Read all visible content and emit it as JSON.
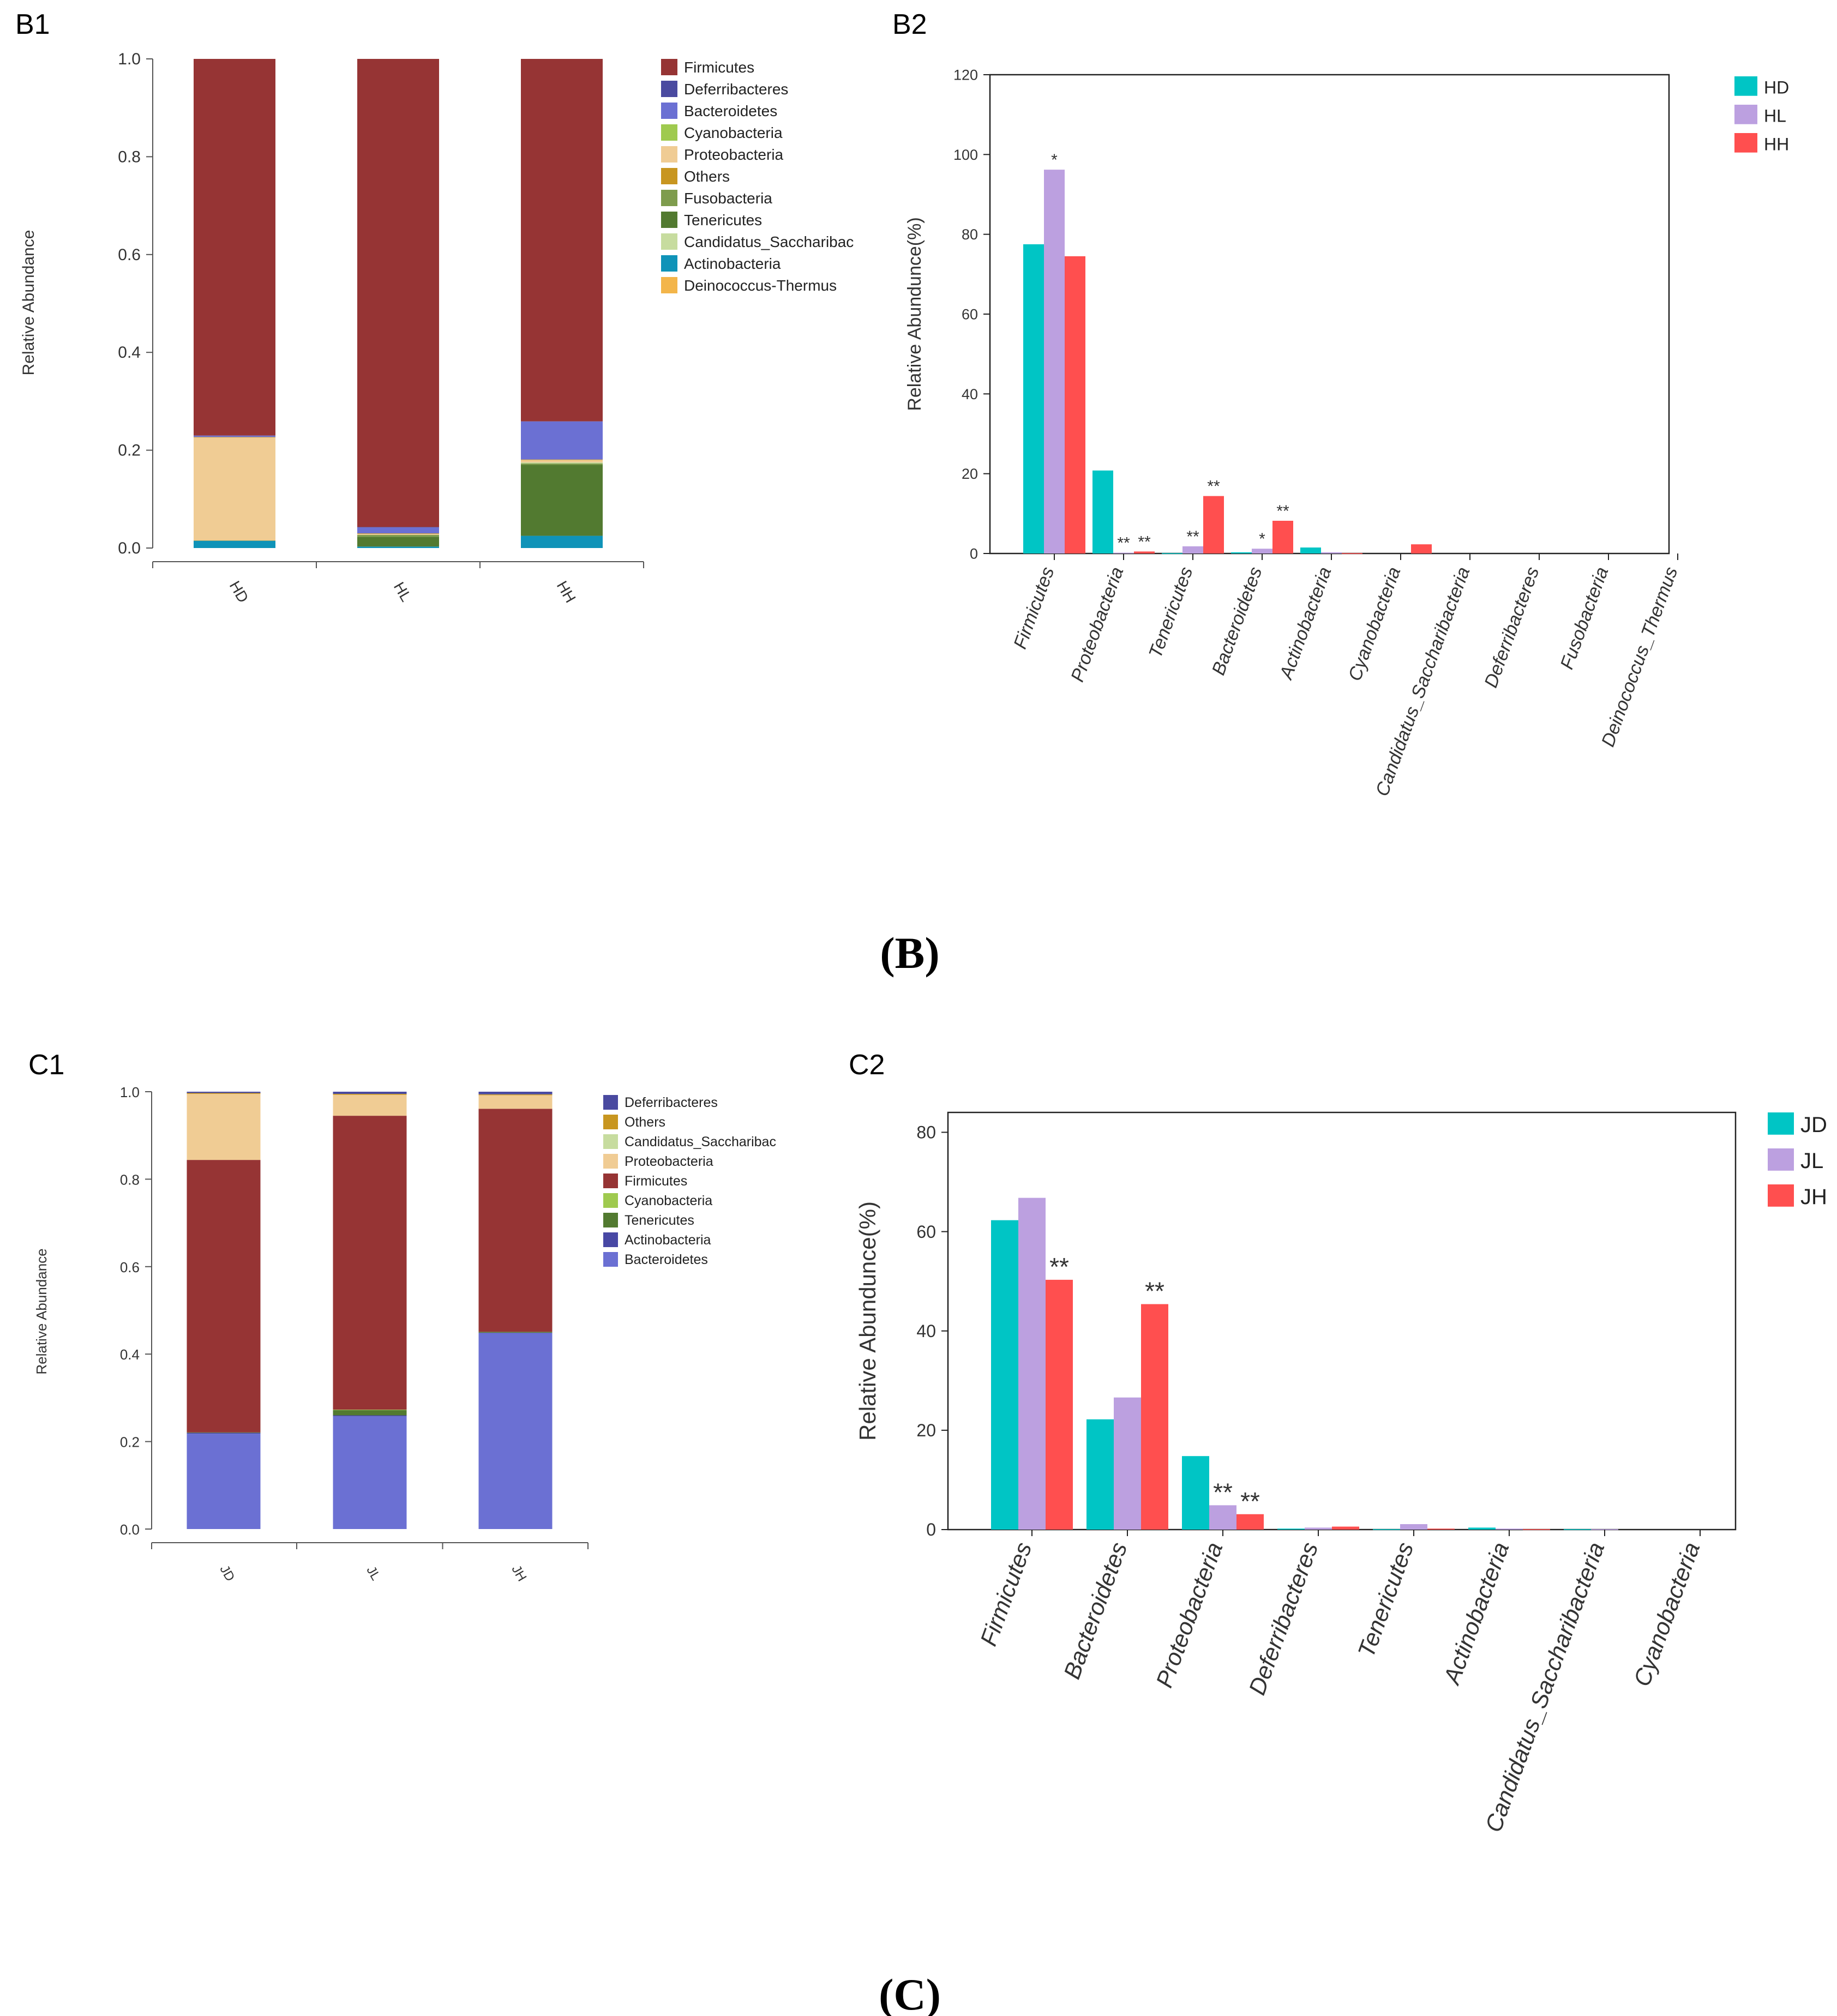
{
  "sections": {
    "B": "(B)",
    "C": "(C)"
  },
  "colors": {
    "Firmicutes": "#963434",
    "Deferribacteres": "#4a4aa0",
    "Bacteroidetes": "#6b70d3",
    "Cyanobacteria": "#9fca4f",
    "Proteobacteria": "#f0cc94",
    "Others": "#c89620",
    "Fusobacteria": "#7e9c4d",
    "Tenericutes": "#527a30",
    "Candidatus_Saccharibac": "#c7dc9f",
    "Actinobacteria": "#0f93b8",
    "Actinobacteria_C": "#4848a4",
    "Deinococcus-Thermus": "#f3b54a",
    "group_D": "#00c5c5",
    "group_L": "#bca0e0",
    "group_H": "#ff4f4f"
  },
  "chart_data": [
    {
      "id": "B1",
      "label": "B1",
      "type": "bar",
      "stacked": true,
      "title": "",
      "xlabel": "",
      "ylabel": "Relative Abundance",
      "ylim": [
        0,
        1
      ],
      "yticks": [
        "0.0",
        "0.2",
        "0.4",
        "0.6",
        "0.8",
        "1.0"
      ],
      "categories": [
        "HD",
        "HL",
        "HH"
      ],
      "legend": [
        "Firmicutes",
        "Deferribacteres",
        "Bacteroidetes",
        "Cyanobacteria",
        "Proteobacteria",
        "Others",
        "Fusobacteria",
        "Tenericutes",
        "Candidatus_Saccharibac",
        "Actinobacteria",
        "Deinococcus-Thermus"
      ],
      "series": [
        {
          "name": "Actinobacteria",
          "values": [
            0.015,
            0.003,
            0.025
          ]
        },
        {
          "name": "Deinococcus-Thermus",
          "values": [
            0.001,
            0.0,
            0.0
          ]
        },
        {
          "name": "Tenericutes",
          "values": [
            0.0,
            0.02,
            0.145
          ]
        },
        {
          "name": "Fusobacteria",
          "values": [
            0.0,
            0.004,
            0.003
          ]
        },
        {
          "name": "Candidatus_Saccharibac",
          "values": [
            0.0,
            0.0,
            0.002
          ]
        },
        {
          "name": "Proteobacteria",
          "values": [
            0.21,
            0.002,
            0.005
          ]
        },
        {
          "name": "Others",
          "values": [
            0.001,
            0.001,
            0.001
          ]
        },
        {
          "name": "Cyanobacteria",
          "values": [
            0.0,
            0.0,
            0.0
          ]
        },
        {
          "name": "Bacteroidetes",
          "values": [
            0.003,
            0.012,
            0.078
          ]
        },
        {
          "name": "Deferribacteres",
          "values": [
            0.0,
            0.001,
            0.0
          ]
        },
        {
          "name": "Firmicutes",
          "values": [
            0.77,
            0.957,
            0.741
          ]
        }
      ]
    },
    {
      "id": "B2",
      "label": "B2",
      "type": "bar",
      "title": "",
      "xlabel": "",
      "ylabel": "Relative Abundunce(%)",
      "ylim": [
        0,
        120
      ],
      "yticks": [
        "0",
        "20",
        "40",
        "60",
        "80",
        "100",
        "120"
      ],
      "categories": [
        "Firmicutes",
        "Proteobacteria",
        "Tenericutes",
        "Bacteroidetes",
        "Actinobacteria",
        "Cyanobacteria",
        "Candidatus_Saccharibacteria",
        "Deferribacteres",
        "Fusobacteria",
        "Deinococcus_Thermus"
      ],
      "series": [
        {
          "name": "HD",
          "values": [
            77.5,
            20.8,
            0.1,
            0.3,
            1.5,
            0.0,
            0.0,
            0.0,
            0.0,
            0.0
          ],
          "marks": [
            "",
            "",
            "",
            "",
            "",
            "",
            "",
            "",
            "",
            ""
          ]
        },
        {
          "name": "HL",
          "values": [
            96.2,
            0.2,
            1.8,
            1.2,
            0.3,
            0.0,
            0.0,
            0.0,
            0.0,
            0.0
          ],
          "marks": [
            "*",
            "**",
            "**",
            "*",
            "",
            "",
            "",
            "",
            "",
            ""
          ]
        },
        {
          "name": "HH",
          "values": [
            74.5,
            0.5,
            14.4,
            8.2,
            0.1,
            2.3,
            0.0,
            0.0,
            0.0,
            0.0
          ],
          "marks": [
            "",
            "**",
            "**",
            "**",
            "",
            "",
            "",
            "",
            "",
            ""
          ]
        }
      ]
    },
    {
      "id": "C1",
      "label": "C1",
      "type": "bar",
      "stacked": true,
      "title": "",
      "xlabel": "",
      "ylabel": "Relative Abundance",
      "ylim": [
        0,
        1
      ],
      "yticks": [
        "0.0",
        "0.2",
        "0.4",
        "0.6",
        "0.8",
        "1.0"
      ],
      "categories": [
        "JD",
        "JL",
        "JH"
      ],
      "legend": [
        "Deferribacteres",
        "Others",
        "Candidatus_Saccharibac",
        "Proteobacteria",
        "Firmicutes",
        "Cyanobacteria",
        "Tenericutes",
        "Actinobacteria",
        "Bacteroidetes"
      ],
      "series": [
        {
          "name": "Bacteroidetes",
          "values": [
            0.218,
            0.258,
            0.448
          ]
        },
        {
          "name": "Actinobacteria",
          "values": [
            0.002,
            0.002,
            0.001
          ]
        },
        {
          "name": "Tenericutes",
          "values": [
            0.001,
            0.012,
            0.002
          ]
        },
        {
          "name": "Cyanobacteria",
          "values": [
            0.0,
            0.001,
            0.0
          ]
        },
        {
          "name": "Firmicutes",
          "values": [
            0.623,
            0.672,
            0.51
          ]
        },
        {
          "name": "Proteobacteria",
          "values": [
            0.151,
            0.048,
            0.031
          ]
        },
        {
          "name": "Candidatus_Saccharibac",
          "values": [
            0.0,
            0.0,
            0.0
          ]
        },
        {
          "name": "Others",
          "values": [
            0.002,
            0.002,
            0.002
          ]
        },
        {
          "name": "Deferribacteres",
          "values": [
            0.003,
            0.005,
            0.006
          ]
        }
      ]
    },
    {
      "id": "C2",
      "label": "C2",
      "type": "bar",
      "title": "",
      "xlabel": "",
      "ylabel": "Relative Abundunce(%)",
      "ylim": [
        0,
        84
      ],
      "yticks": [
        "0",
        "20",
        "40",
        "60",
        "80"
      ],
      "categories": [
        "Firmicutes",
        "Bacteroidetes",
        "Proteobacteria",
        "Deferribacteres",
        "Tenericutes",
        "Actinobacteria",
        "Candidatus_Saccharibacteria",
        "Cyanobacteria"
      ],
      "series": [
        {
          "name": "JD",
          "values": [
            62.3,
            22.2,
            14.8,
            0.2,
            0.1,
            0.4,
            0.1,
            0.0
          ],
          "marks": [
            "",
            "",
            "",
            "",
            "",
            "",
            "",
            ""
          ]
        },
        {
          "name": "JL",
          "values": [
            66.8,
            26.6,
            4.9,
            0.4,
            1.1,
            0.2,
            0.1,
            0.0
          ],
          "marks": [
            "",
            "",
            "**",
            "",
            "",
            "",
            "",
            ""
          ]
        },
        {
          "name": "JH",
          "values": [
            50.3,
            45.4,
            3.1,
            0.6,
            0.2,
            0.1,
            0.0,
            0.0
          ],
          "marks": [
            "**",
            "**",
            "**",
            "",
            "",
            "",
            "",
            ""
          ]
        }
      ]
    }
  ]
}
